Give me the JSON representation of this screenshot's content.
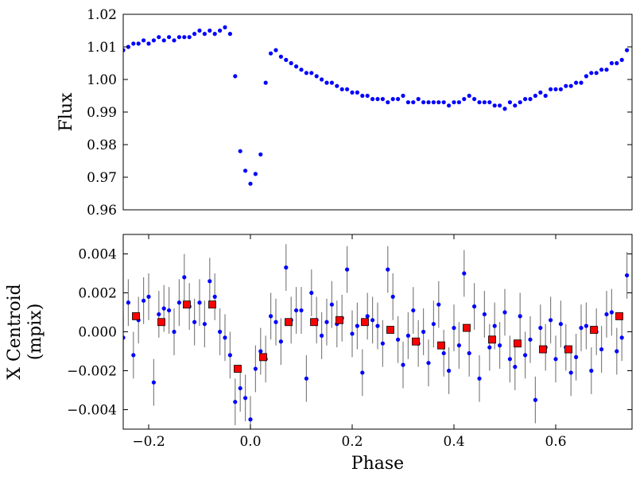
{
  "chart_data": [
    {
      "type": "scatter",
      "ylabel": "Flux",
      "xlim": [
        -0.25,
        0.75
      ],
      "ylim": [
        0.96,
        1.02
      ],
      "yticks": [
        0.96,
        0.97,
        0.98,
        0.99,
        {
          "value": 1.0,
          "label": "1.00"
        },
        1.01,
        1.02
      ],
      "series": [
        {
          "color": "#0000ff",
          "marker": "circle",
          "x": [
            -0.25,
            -0.24,
            -0.23,
            -0.22,
            -0.21,
            -0.2,
            -0.19,
            -0.18,
            -0.17,
            -0.16,
            -0.15,
            -0.14,
            -0.13,
            -0.12,
            -0.11,
            -0.1,
            -0.09,
            -0.08,
            -0.07,
            -0.06,
            -0.05,
            -0.04,
            -0.03,
            -0.02,
            -0.01,
            0.0,
            0.01,
            0.02,
            0.03,
            0.04,
            0.05,
            0.06,
            0.07,
            0.08,
            0.09,
            0.1,
            0.11,
            0.12,
            0.13,
            0.14,
            0.15,
            0.16,
            0.17,
            0.18,
            0.19,
            0.2,
            0.21,
            0.22,
            0.23,
            0.24,
            0.25,
            0.26,
            0.27,
            0.28,
            0.29,
            0.3,
            0.31,
            0.32,
            0.33,
            0.34,
            0.35,
            0.36,
            0.37,
            0.38,
            0.39,
            0.4,
            0.41,
            0.42,
            0.43,
            0.44,
            0.45,
            0.46,
            0.47,
            0.48,
            0.49,
            0.5,
            0.51,
            0.52,
            0.53,
            0.54,
            0.55,
            0.56,
            0.57,
            0.58,
            0.59,
            0.6,
            0.61,
            0.62,
            0.63,
            0.64,
            0.65,
            0.66,
            0.67,
            0.68,
            0.69,
            0.7,
            0.71,
            0.72,
            0.73,
            0.74
          ],
          "values": [
            1.009,
            1.01,
            1.011,
            1.011,
            1.012,
            1.011,
            1.012,
            1.013,
            1.012,
            1.013,
            1.012,
            1.013,
            1.013,
            1.013,
            1.014,
            1.015,
            1.014,
            1.015,
            1.014,
            1.015,
            1.016,
            1.014,
            1.001,
            0.978,
            0.972,
            0.968,
            0.971,
            0.977,
            0.999,
            1.008,
            1.009,
            1.007,
            1.006,
            1.005,
            1.004,
            1.003,
            1.002,
            1.002,
            1.001,
            1.0,
            0.999,
            0.999,
            0.998,
            0.997,
            0.997,
            0.996,
            0.996,
            0.995,
            0.995,
            0.994,
            0.994,
            0.994,
            0.993,
            0.994,
            0.994,
            0.995,
            0.993,
            0.993,
            0.994,
            0.993,
            0.993,
            0.993,
            0.993,
            0.993,
            0.992,
            0.993,
            0.993,
            0.994,
            0.995,
            0.994,
            0.993,
            0.993,
            0.993,
            0.992,
            0.992,
            0.991,
            0.993,
            0.992,
            0.993,
            0.994,
            0.994,
            0.995,
            0.996,
            0.995,
            0.997,
            0.997,
            0.997,
            0.998,
            0.998,
            0.999,
            0.999,
            1.001,
            1.002,
            1.002,
            1.003,
            1.003,
            1.005,
            1.005,
            1.006,
            1.009
          ]
        }
      ]
    },
    {
      "type": "errorbar",
      "xlabel": "Phase",
      "ylabel": [
        "X Centroid",
        "(mpix)"
      ],
      "xlim": [
        -0.25,
        0.75
      ],
      "ylim": [
        -0.005,
        0.005
      ],
      "xticks": [
        {
          "value": -0.2,
          "label": "−0.2"
        },
        {
          "value": 0.0,
          "label": "0.0"
        },
        0.2,
        0.4,
        0.6
      ],
      "yticks": [
        {
          "value": -0.004,
          "label": "−0.004"
        },
        {
          "value": -0.002,
          "label": "−0.002"
        },
        {
          "value": 0.0,
          "label": "0.000"
        },
        0.002,
        0.004
      ],
      "series": [
        {
          "color": "#0000ff",
          "marker": "circle",
          "errcolor": "#808080",
          "x": [
            -0.25,
            -0.24,
            -0.23,
            -0.22,
            -0.21,
            -0.2,
            -0.19,
            -0.18,
            -0.17,
            -0.16,
            -0.15,
            -0.14,
            -0.13,
            -0.12,
            -0.11,
            -0.1,
            -0.09,
            -0.08,
            -0.07,
            -0.06,
            -0.05,
            -0.04,
            -0.03,
            -0.02,
            -0.01,
            0.0,
            0.01,
            0.02,
            0.03,
            0.04,
            0.05,
            0.06,
            0.07,
            0.08,
            0.09,
            0.1,
            0.11,
            0.12,
            0.13,
            0.14,
            0.15,
            0.16,
            0.17,
            0.18,
            0.19,
            0.2,
            0.21,
            0.22,
            0.23,
            0.24,
            0.25,
            0.26,
            0.27,
            0.28,
            0.29,
            0.3,
            0.31,
            0.32,
            0.33,
            0.34,
            0.35,
            0.36,
            0.37,
            0.38,
            0.39,
            0.4,
            0.41,
            0.42,
            0.43,
            0.44,
            0.45,
            0.46,
            0.47,
            0.48,
            0.49,
            0.5,
            0.51,
            0.52,
            0.53,
            0.54,
            0.55,
            0.56,
            0.57,
            0.58,
            0.59,
            0.6,
            0.61,
            0.62,
            0.63,
            0.64,
            0.65,
            0.66,
            0.67,
            0.68,
            0.69,
            0.7,
            0.71,
            0.72,
            0.73,
            0.74
          ],
          "values": [
            -0.0003,
            0.0015,
            -0.0012,
            0.0006,
            0.0016,
            0.0018,
            -0.0026,
            0.0009,
            0.0012,
            0.0011,
            0.0,
            0.0015,
            0.0028,
            0.0013,
            0.0005,
            0.0015,
            0.0004,
            0.0026,
            0.0018,
            0.0,
            -0.0003,
            -0.0012,
            -0.0036,
            -0.0029,
            -0.0034,
            -0.0045,
            -0.0019,
            -0.001,
            -0.0014,
            0.0008,
            0.0005,
            -0.0005,
            0.0033,
            0.0006,
            0.0011,
            0.0011,
            -0.0024,
            0.002,
            0.0006,
            -0.0002,
            0.0005,
            0.0014,
            0.0004,
            0.0007,
            0.0032,
            -0.0001,
            0.0003,
            -0.0021,
            0.0008,
            0.0006,
            0.0003,
            -0.0006,
            0.0032,
            0.0018,
            -0.0004,
            -0.0017,
            -0.0002,
            0.0011,
            -0.0006,
            0.0,
            -0.0016,
            0.0004,
            0.0014,
            -0.0011,
            -0.002,
            0.0002,
            -0.0007,
            0.003,
            -0.0011,
            0.0013,
            -0.0024,
            0.0009,
            -0.0008,
            0.0003,
            -0.0007,
            0.001,
            -0.0014,
            -0.0018,
            0.0008,
            -0.0012,
            -0.0004,
            -0.0035,
            0.0002,
            -0.0008,
            0.0006,
            -0.0014,
            0.0004,
            -0.0008,
            -0.0021,
            -0.0013,
            0.0002,
            0.0003,
            -0.002,
            0.0,
            -0.0009,
            0.0009,
            0.001,
            -0.001,
            -0.0003,
            0.0029
          ],
          "errors": [
            0.0012,
            0.0012,
            0.0012,
            0.0012,
            0.0012,
            0.0012,
            0.0012,
            0.0012,
            0.0012,
            0.0012,
            0.0012,
            0.0012,
            0.0012,
            0.0012,
            0.0012,
            0.0012,
            0.0012,
            0.0012,
            0.0012,
            0.0012,
            0.0012,
            0.0012,
            0.0012,
            0.0012,
            0.0012,
            0.0012,
            0.0012,
            0.0012,
            0.0012,
            0.0012,
            0.0012,
            0.0012,
            0.0012,
            0.0012,
            0.0012,
            0.0012,
            0.0012,
            0.0012,
            0.0012,
            0.0012,
            0.0012,
            0.0012,
            0.0012,
            0.0012,
            0.0012,
            0.0012,
            0.0012,
            0.0012,
            0.0012,
            0.0012,
            0.0012,
            0.0012,
            0.0012,
            0.0012,
            0.0012,
            0.0012,
            0.0012,
            0.0012,
            0.0012,
            0.0012,
            0.0012,
            0.0012,
            0.0012,
            0.0012,
            0.0012,
            0.0012,
            0.0012,
            0.0012,
            0.0012,
            0.0012,
            0.0012,
            0.0012,
            0.0012,
            0.0012,
            0.0012,
            0.0012,
            0.0012,
            0.0012,
            0.0012,
            0.0012,
            0.0012,
            0.0012,
            0.0012,
            0.0012,
            0.0012,
            0.0012,
            0.0012,
            0.0012,
            0.0012,
            0.0012,
            0.0012,
            0.0012,
            0.0012,
            0.0012,
            0.0012,
            0.0012,
            0.0012,
            0.0012,
            0.0012,
            0.0012
          ]
        },
        {
          "color": "#ff0000",
          "marker": "square",
          "x": [
            -0.225,
            -0.175,
            -0.125,
            -0.075,
            -0.025,
            0.025,
            0.075,
            0.125,
            0.175,
            0.225,
            0.275,
            0.325,
            0.375,
            0.425,
            0.475,
            0.525,
            0.575,
            0.625,
            0.675,
            0.725
          ],
          "values": [
            0.0008,
            0.0005,
            0.0014,
            0.0014,
            -0.0019,
            -0.0013,
            0.0005,
            0.0005,
            0.0006,
            0.0005,
            0.0001,
            -0.0005,
            -0.0007,
            0.0002,
            -0.0004,
            -0.0006,
            -0.0009,
            -0.0009,
            0.0001,
            0.0008
          ]
        }
      ]
    }
  ]
}
